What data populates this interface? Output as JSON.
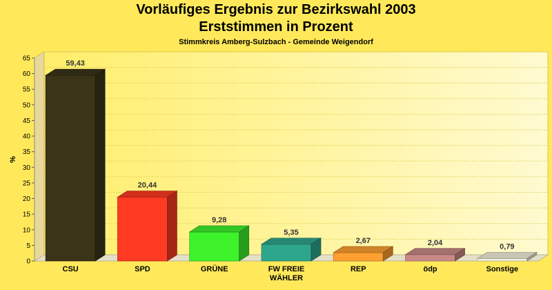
{
  "chart_data": {
    "type": "bar",
    "title": "Vorläufiges Ergebnis zur Bezirkswahl 2003",
    "subtitle": "Erststimmen in Prozent",
    "subsubtitle": "Stimmkreis Amberg-Sulzbach - Gemeinde Weigendorf",
    "ylabel": "%",
    "ylim": [
      0,
      65
    ],
    "yticks": [
      0,
      5,
      10,
      15,
      20,
      25,
      30,
      35,
      40,
      45,
      50,
      55,
      60,
      65
    ],
    "categories": [
      [
        "CSU"
      ],
      [
        "SPD"
      ],
      [
        "GRÜNE"
      ],
      [
        "FW FREIE",
        "WÄHLER"
      ],
      [
        "REP"
      ],
      [
        "ödp"
      ],
      [
        "Sonstige"
      ]
    ],
    "values": [
      59.43,
      20.44,
      9.28,
      5.35,
      2.67,
      2.04,
      0.79
    ],
    "value_labels": [
      "59,43",
      "20,44",
      "9,28",
      "5,35",
      "2,67",
      "2,04",
      "0,79"
    ],
    "colors": [
      "#3b3418",
      "#ff3a22",
      "#3ef22c",
      "#2ea68c",
      "#ffa030",
      "#c98a86",
      "#f4f0dc"
    ],
    "grid": true,
    "legend": "none"
  }
}
